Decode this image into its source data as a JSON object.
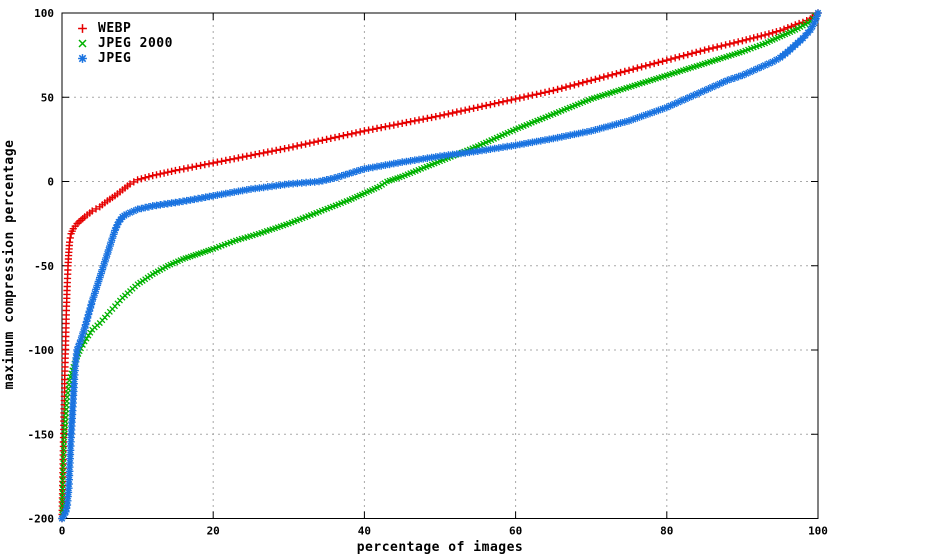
{
  "chart_data": {
    "type": "scatter",
    "title": "",
    "xlabel": "percentage of images",
    "ylabel": "maximum compression percentage",
    "xlim": [
      0,
      100
    ],
    "ylim": [
      -200,
      100
    ],
    "x_ticks": [
      0,
      20,
      40,
      60,
      80,
      100
    ],
    "y_ticks": [
      100,
      50,
      0,
      -50,
      -100,
      -150,
      -200
    ],
    "grid": true,
    "grid_color": "#a8a8a8",
    "axis_color": "#000000",
    "legend_position": "top-left-inside",
    "series": [
      {
        "name": "WEBP",
        "color": "#e60000",
        "marker": "plus",
        "points": [
          [
            0,
            -200
          ],
          [
            0.1,
            -178
          ],
          [
            0.2,
            -152
          ],
          [
            0.3,
            -130
          ],
          [
            0.4,
            -110
          ],
          [
            0.5,
            -92
          ],
          [
            0.6,
            -74
          ],
          [
            0.7,
            -60
          ],
          [
            0.8,
            -50
          ],
          [
            0.9,
            -42
          ],
          [
            1,
            -36
          ],
          [
            1.2,
            -31
          ],
          [
            1.5,
            -28
          ],
          [
            2,
            -25
          ],
          [
            2.5,
            -23
          ],
          [
            3,
            -21
          ],
          [
            4,
            -17.5
          ],
          [
            5,
            -15
          ],
          [
            6,
            -11.5
          ],
          [
            7,
            -8.5
          ],
          [
            8,
            -5
          ],
          [
            9,
            -1.5
          ],
          [
            10,
            1
          ],
          [
            12,
            3.5
          ],
          [
            15,
            6.5
          ],
          [
            20,
            11
          ],
          [
            25,
            15.5
          ],
          [
            30,
            20
          ],
          [
            35,
            25
          ],
          [
            40,
            30
          ],
          [
            45,
            34.5
          ],
          [
            50,
            39
          ],
          [
            55,
            44
          ],
          [
            60,
            49
          ],
          [
            65,
            54
          ],
          [
            70,
            60
          ],
          [
            75,
            66
          ],
          [
            80,
            72
          ],
          [
            85,
            78
          ],
          [
            90,
            83.5
          ],
          [
            93,
            87
          ],
          [
            95,
            89.5
          ],
          [
            97,
            93
          ],
          [
            98,
            94.5
          ],
          [
            99,
            96.5
          ],
          [
            99.5,
            98
          ],
          [
            100,
            100
          ]
        ]
      },
      {
        "name": "JPEG 2000",
        "color": "#00b200",
        "marker": "cross",
        "points": [
          [
            0,
            -200
          ],
          [
            0.1,
            -175
          ],
          [
            0.2,
            -162
          ],
          [
            0.3,
            -152
          ],
          [
            0.5,
            -140
          ],
          [
            0.7,
            -128
          ],
          [
            1,
            -118
          ],
          [
            1.5,
            -110
          ],
          [
            2,
            -104
          ],
          [
            2.5,
            -99
          ],
          [
            3,
            -95
          ],
          [
            4,
            -88
          ],
          [
            5,
            -84
          ],
          [
            6,
            -79
          ],
          [
            7,
            -74
          ],
          [
            8,
            -69
          ],
          [
            9,
            -65
          ],
          [
            10,
            -61
          ],
          [
            12,
            -55
          ],
          [
            14,
            -50
          ],
          [
            16,
            -46
          ],
          [
            18,
            -43
          ],
          [
            20,
            -40
          ],
          [
            23,
            -35
          ],
          [
            26,
            -31
          ],
          [
            30,
            -25
          ],
          [
            34,
            -18
          ],
          [
            38,
            -11
          ],
          [
            40,
            -7
          ],
          [
            42,
            -3
          ],
          [
            43,
            0
          ],
          [
            45,
            3
          ],
          [
            50,
            12
          ],
          [
            55,
            21
          ],
          [
            60,
            31
          ],
          [
            65,
            40
          ],
          [
            70,
            49
          ],
          [
            75,
            56
          ],
          [
            80,
            63
          ],
          [
            85,
            70
          ],
          [
            90,
            77
          ],
          [
            93,
            82
          ],
          [
            95,
            86
          ],
          [
            97,
            90
          ],
          [
            99,
            95
          ],
          [
            100,
            100
          ]
        ]
      },
      {
        "name": "JPEG",
        "color": "#1a73e0",
        "marker": "asterisk",
        "points": [
          [
            0,
            -200
          ],
          [
            0.3,
            -198
          ],
          [
            0.5,
            -196
          ],
          [
            0.7,
            -192
          ],
          [
            0.9,
            -182
          ],
          [
            1,
            -172
          ],
          [
            1.2,
            -152
          ],
          [
            1.4,
            -136
          ],
          [
            1.6,
            -120
          ],
          [
            1.8,
            -107
          ],
          [
            2,
            -100
          ],
          [
            2.5,
            -94
          ],
          [
            3,
            -87
          ],
          [
            3.5,
            -79
          ],
          [
            4,
            -71
          ],
          [
            4.5,
            -64
          ],
          [
            5,
            -57
          ],
          [
            5.5,
            -50
          ],
          [
            6,
            -43
          ],
          [
            6.5,
            -36
          ],
          [
            7,
            -29
          ],
          [
            7.5,
            -24
          ],
          [
            8,
            -21
          ],
          [
            8.5,
            -19.5
          ],
          [
            9,
            -18.5
          ],
          [
            10,
            -16.5
          ],
          [
            12,
            -14.5
          ],
          [
            15,
            -12.5
          ],
          [
            17,
            -11
          ],
          [
            20,
            -8.5
          ],
          [
            25,
            -4.5
          ],
          [
            30,
            -1.5
          ],
          [
            34,
            0
          ],
          [
            36,
            2
          ],
          [
            40,
            7.5
          ],
          [
            45,
            11.5
          ],
          [
            50,
            15
          ],
          [
            55,
            18
          ],
          [
            60,
            21.5
          ],
          [
            65,
            25.5
          ],
          [
            70,
            30
          ],
          [
            75,
            36
          ],
          [
            80,
            44
          ],
          [
            83,
            50
          ],
          [
            85,
            54
          ],
          [
            88,
            60
          ],
          [
            90,
            63
          ],
          [
            92,
            67
          ],
          [
            94,
            71
          ],
          [
            95,
            73.5
          ],
          [
            96,
            77
          ],
          [
            97,
            81
          ],
          [
            98,
            85
          ],
          [
            99,
            90
          ],
          [
            99.5,
            94
          ],
          [
            100,
            100
          ]
        ]
      }
    ]
  }
}
